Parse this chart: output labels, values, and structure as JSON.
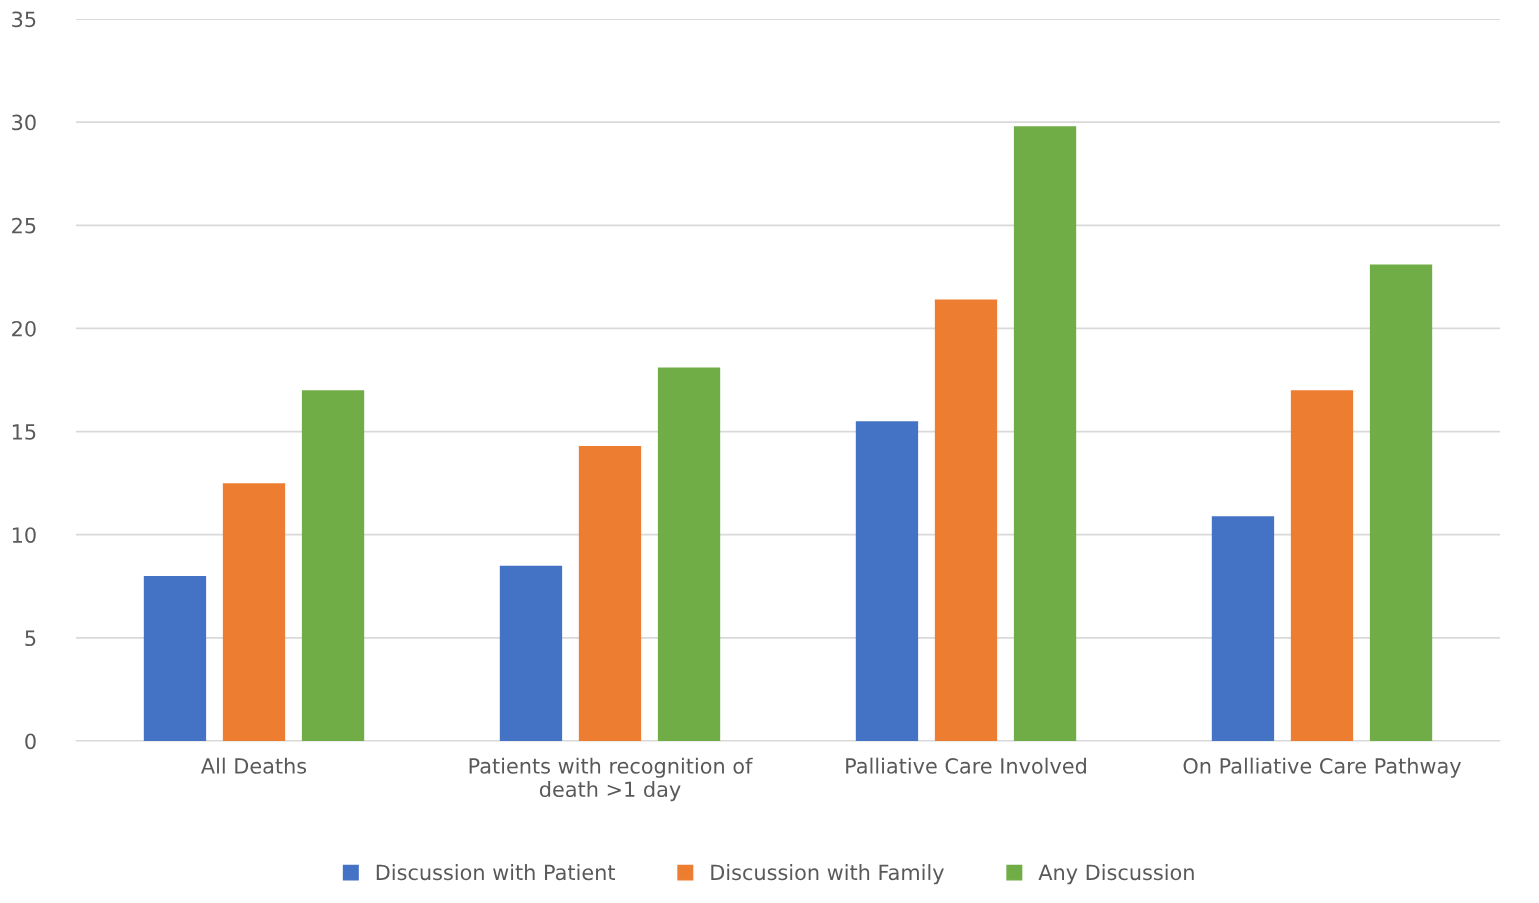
{
  "chart_data": {
    "type": "bar",
    "categories": [
      "All Deaths",
      "Patients with recognition of death >1 day",
      "Palliative Care Involved",
      "On Palliative Care Pathway"
    ],
    "series": [
      {
        "name": "Discussion with Patient",
        "color": "#4472c4",
        "values": [
          8.0,
          8.5,
          15.5,
          10.9
        ]
      },
      {
        "name": "Discussion with Family",
        "color": "#ed7d31",
        "values": [
          12.5,
          14.3,
          21.4,
          17.0
        ]
      },
      {
        "name": "Any Discussion",
        "color": "#70ad47",
        "values": [
          17.0,
          18.1,
          29.8,
          23.1
        ]
      }
    ],
    "ylim": [
      0,
      35
    ],
    "yticks": [
      0,
      5,
      10,
      15,
      20,
      25,
      30,
      35
    ],
    "grid": "y",
    "legend": "bottom"
  }
}
